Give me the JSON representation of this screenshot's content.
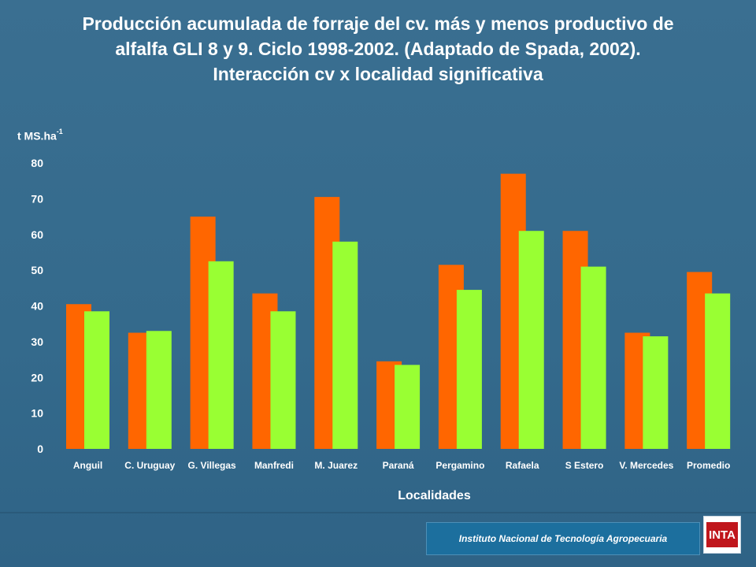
{
  "title": {
    "line1": "Producción acumulada de forraje  del cv. más y menos  productivo de",
    "line2": "alfalfa GLI 8 y 9. Ciclo 1998-2002. (Adaptado de Spada, 2002).",
    "line3": "Interacción cv x localidad significativa"
  },
  "footer": {
    "institution": "Instituto Nacional de Tecnología Agropecuaria",
    "logo_text": "INTA"
  },
  "colors": {
    "background": "#356a8c",
    "series_high": "#ff6600",
    "series_low": "#99ff33",
    "text": "#ffffff"
  },
  "chart_data": {
    "type": "bar",
    "title": "Producción acumulada de forraje del cv. más y menos productivo de alfalfa GLI 8 y 9. Ciclo 1998-2002. (Adaptado de Spada, 2002). Interacción cv x localidad significativa",
    "xlabel": "Localidades",
    "ylabel": "t MS.ha",
    "ylabel_sup": "-1",
    "ylim": [
      0,
      80
    ],
    "yticks": [
      0,
      10,
      20,
      30,
      40,
      50,
      60,
      70,
      80
    ],
    "grid": false,
    "legend": "none",
    "categories": [
      "Anguil",
      "C. Uruguay",
      "G. Villegas",
      "Manfredi",
      "M. Juarez",
      "Paraná",
      "Pergamino",
      "Rafaela",
      "S Estero",
      "V. Mercedes",
      "Promedio"
    ],
    "series": [
      {
        "color": "#ff6600",
        "values": [
          40.5,
          32.5,
          65,
          43.5,
          70.5,
          24.5,
          51.5,
          77,
          61,
          32.5,
          49.5
        ]
      },
      {
        "color": "#99ff33",
        "values": [
          38.5,
          33,
          52.5,
          38.5,
          58,
          23.5,
          44.5,
          61,
          51,
          31.5,
          43.5
        ]
      }
    ]
  }
}
